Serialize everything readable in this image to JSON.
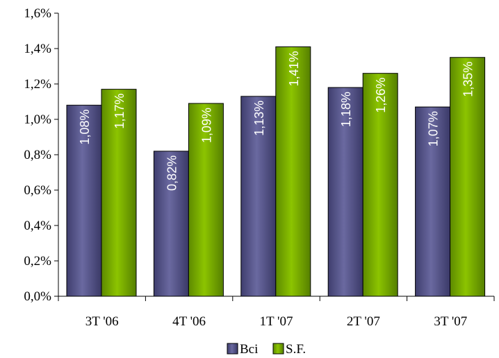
{
  "chart_data": {
    "type": "bar",
    "categories": [
      "3T '06",
      "4T '06",
      "1T '07",
      "2T '07",
      "3T '07"
    ],
    "series": [
      {
        "name": "Bci",
        "values": [
          1.08,
          0.82,
          1.13,
          1.18,
          1.07
        ],
        "labels": [
          "1,08%",
          "0,82%",
          "1,13%",
          "1,18%",
          "1,07%"
        ],
        "color": "#5b5a8c"
      },
      {
        "name": "S.F.",
        "values": [
          1.17,
          1.09,
          1.41,
          1.26,
          1.35
        ],
        "labels": [
          "1,17%",
          "1,09%",
          "1,41%",
          "1,26%",
          "1,35%"
        ],
        "color": "#7ab300"
      }
    ],
    "ylim": [
      0,
      1.6
    ],
    "yticks": [
      0,
      0.2,
      0.4,
      0.6,
      0.8,
      1.0,
      1.2,
      1.4,
      1.6
    ],
    "ytick_labels": [
      "0,0%",
      "0,2%",
      "0,4%",
      "0,6%",
      "0,8%",
      "1,0%",
      "1,2%",
      "1,4%",
      "1,6%"
    ],
    "grid": false,
    "legend_position": "bottom-center",
    "title": "",
    "xlabel": "",
    "ylabel": ""
  }
}
